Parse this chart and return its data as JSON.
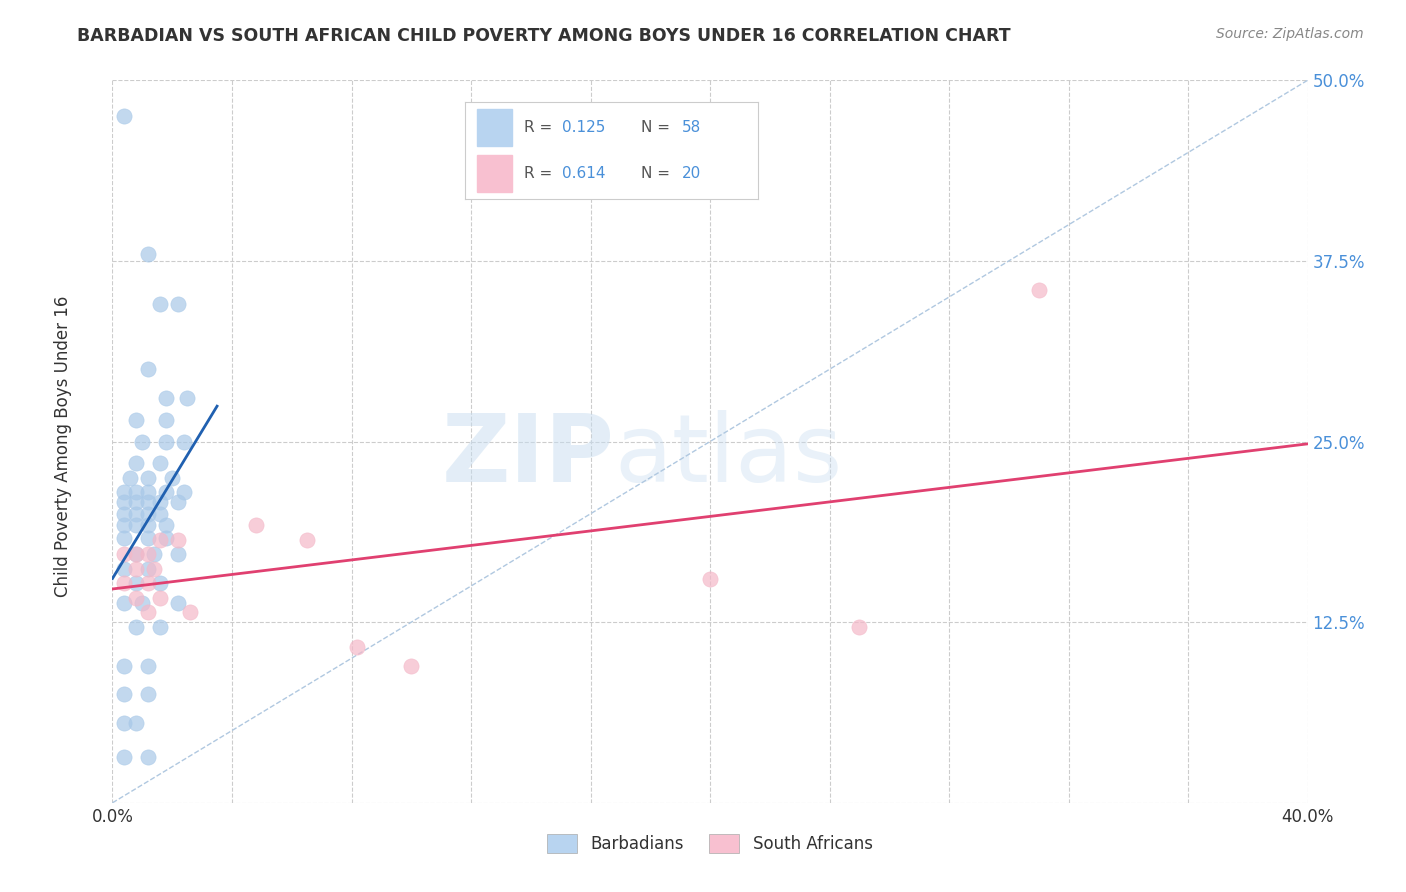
{
  "title": "BARBADIAN VS SOUTH AFRICAN CHILD POVERTY AMONG BOYS UNDER 16 CORRELATION CHART",
  "source": "Source: ZipAtlas.com",
  "ylabel": "Child Poverty Among Boys Under 16",
  "xlim": [
    0.0,
    0.4
  ],
  "ylim": [
    0.0,
    0.5
  ],
  "xticks": [
    0.0,
    0.04,
    0.08,
    0.12,
    0.16,
    0.2,
    0.24,
    0.28,
    0.32,
    0.36,
    0.4
  ],
  "yticks": [
    0.0,
    0.125,
    0.25,
    0.375,
    0.5
  ],
  "watermark_zip": "ZIP",
  "watermark_atlas": "atlas",
  "blue_color": "#a8c8e8",
  "pink_color": "#f4b8c8",
  "blue_line_color": "#2060b0",
  "pink_line_color": "#e04070",
  "dashed_line_color": "#b0c8e0",
  "barbadian_points": [
    [
      0.004,
      0.475
    ],
    [
      0.012,
      0.38
    ],
    [
      0.016,
      0.345
    ],
    [
      0.022,
      0.345
    ],
    [
      0.012,
      0.3
    ],
    [
      0.018,
      0.28
    ],
    [
      0.025,
      0.28
    ],
    [
      0.008,
      0.265
    ],
    [
      0.018,
      0.265
    ],
    [
      0.01,
      0.25
    ],
    [
      0.018,
      0.25
    ],
    [
      0.024,
      0.25
    ],
    [
      0.008,
      0.235
    ],
    [
      0.016,
      0.235
    ],
    [
      0.006,
      0.225
    ],
    [
      0.012,
      0.225
    ],
    [
      0.02,
      0.225
    ],
    [
      0.004,
      0.215
    ],
    [
      0.008,
      0.215
    ],
    [
      0.012,
      0.215
    ],
    [
      0.018,
      0.215
    ],
    [
      0.024,
      0.215
    ],
    [
      0.004,
      0.208
    ],
    [
      0.008,
      0.208
    ],
    [
      0.012,
      0.208
    ],
    [
      0.016,
      0.208
    ],
    [
      0.022,
      0.208
    ],
    [
      0.004,
      0.2
    ],
    [
      0.008,
      0.2
    ],
    [
      0.012,
      0.2
    ],
    [
      0.016,
      0.2
    ],
    [
      0.004,
      0.192
    ],
    [
      0.008,
      0.192
    ],
    [
      0.012,
      0.192
    ],
    [
      0.018,
      0.192
    ],
    [
      0.004,
      0.183
    ],
    [
      0.012,
      0.183
    ],
    [
      0.018,
      0.183
    ],
    [
      0.008,
      0.172
    ],
    [
      0.014,
      0.172
    ],
    [
      0.022,
      0.172
    ],
    [
      0.004,
      0.162
    ],
    [
      0.012,
      0.162
    ],
    [
      0.008,
      0.152
    ],
    [
      0.016,
      0.152
    ],
    [
      0.004,
      0.138
    ],
    [
      0.01,
      0.138
    ],
    [
      0.022,
      0.138
    ],
    [
      0.008,
      0.122
    ],
    [
      0.016,
      0.122
    ],
    [
      0.004,
      0.095
    ],
    [
      0.012,
      0.095
    ],
    [
      0.004,
      0.075
    ],
    [
      0.012,
      0.075
    ],
    [
      0.004,
      0.055
    ],
    [
      0.008,
      0.055
    ],
    [
      0.004,
      0.032
    ],
    [
      0.012,
      0.032
    ]
  ],
  "sa_points": [
    [
      0.004,
      0.172
    ],
    [
      0.008,
      0.172
    ],
    [
      0.012,
      0.172
    ],
    [
      0.008,
      0.162
    ],
    [
      0.014,
      0.162
    ],
    [
      0.004,
      0.152
    ],
    [
      0.012,
      0.152
    ],
    [
      0.016,
      0.182
    ],
    [
      0.022,
      0.182
    ],
    [
      0.008,
      0.142
    ],
    [
      0.016,
      0.142
    ],
    [
      0.012,
      0.132
    ],
    [
      0.026,
      0.132
    ],
    [
      0.048,
      0.192
    ],
    [
      0.065,
      0.182
    ],
    [
      0.082,
      0.108
    ],
    [
      0.1,
      0.095
    ],
    [
      0.2,
      0.155
    ],
    [
      0.25,
      0.122
    ],
    [
      0.31,
      0.355
    ]
  ],
  "bg_color": "#ffffff",
  "grid_color": "#cccccc"
}
